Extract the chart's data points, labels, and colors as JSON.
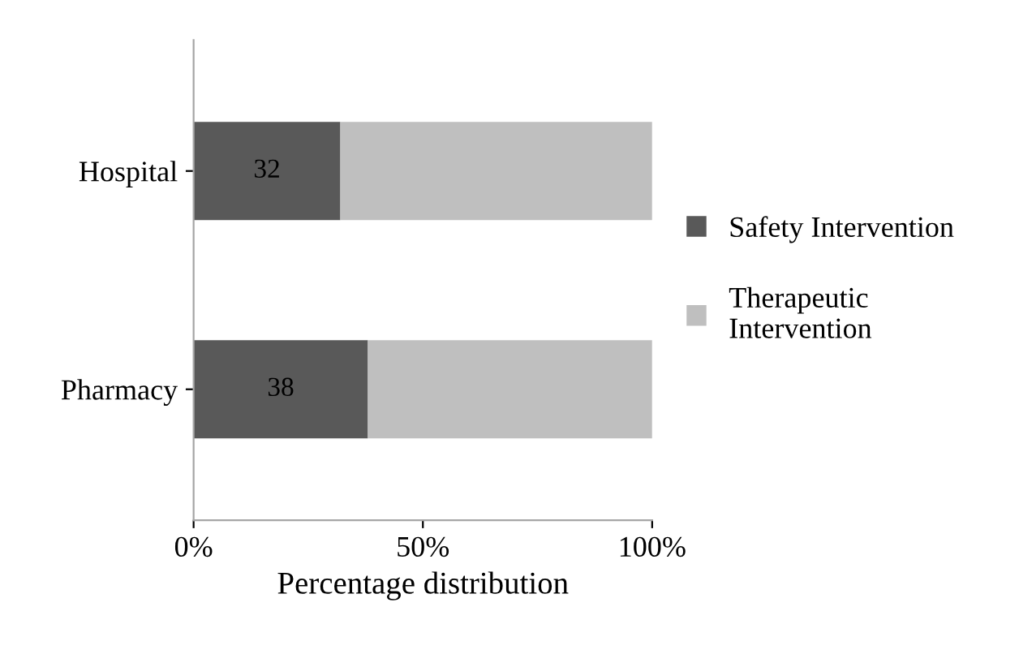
{
  "chart_data": {
    "type": "bar",
    "orientation": "horizontal",
    "stacked": true,
    "xlabel": "Percentage distribution",
    "categories": [
      "Hospital",
      "Pharmacy"
    ],
    "series": [
      {
        "name": "Safety Intervention",
        "color": "#595959",
        "values": [
          32,
          38
        ],
        "value_labels": [
          "32",
          "38"
        ]
      },
      {
        "name": "Therapeutic\nIntervention",
        "color": "#bfbfbf",
        "values": [
          68,
          62
        ]
      }
    ],
    "xlim": [
      0,
      100
    ],
    "xticks": [
      {
        "value": 0,
        "label": "0%"
      },
      {
        "value": 50,
        "label": "50%"
      },
      {
        "value": 100,
        "label": "100%"
      }
    ],
    "grid": false,
    "legend": "right"
  }
}
